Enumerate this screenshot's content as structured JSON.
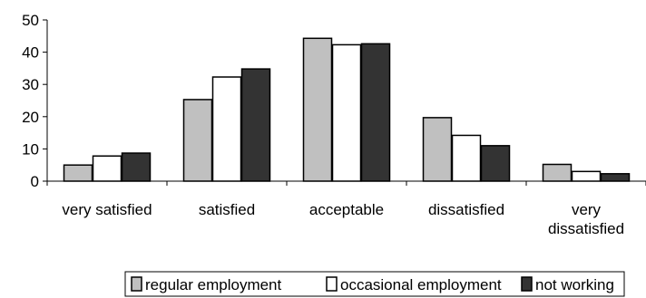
{
  "chart_data": {
    "type": "bar",
    "categories": [
      [
        "very satisfied"
      ],
      [
        "satisfied"
      ],
      [
        "acceptable"
      ],
      [
        "dissatisfied"
      ],
      [
        "very",
        "dissatisfied"
      ]
    ],
    "series": [
      {
        "name": "regular employment",
        "values": [
          5,
          25.3,
          44.3,
          19.7,
          5.2
        ],
        "color": "#c0c0c0"
      },
      {
        "name": "occasional employment",
        "values": [
          7.8,
          32.3,
          42.3,
          14.2,
          3
        ],
        "color": "#ffffff"
      },
      {
        "name": "not working",
        "values": [
          8.7,
          34.8,
          42.6,
          11,
          2.3
        ],
        "color": "#333333"
      }
    ],
    "ylim": [
      0,
      50
    ],
    "yticks": [
      0,
      10,
      20,
      30,
      40,
      50
    ],
    "grid": false,
    "legend_position": "bottom"
  }
}
